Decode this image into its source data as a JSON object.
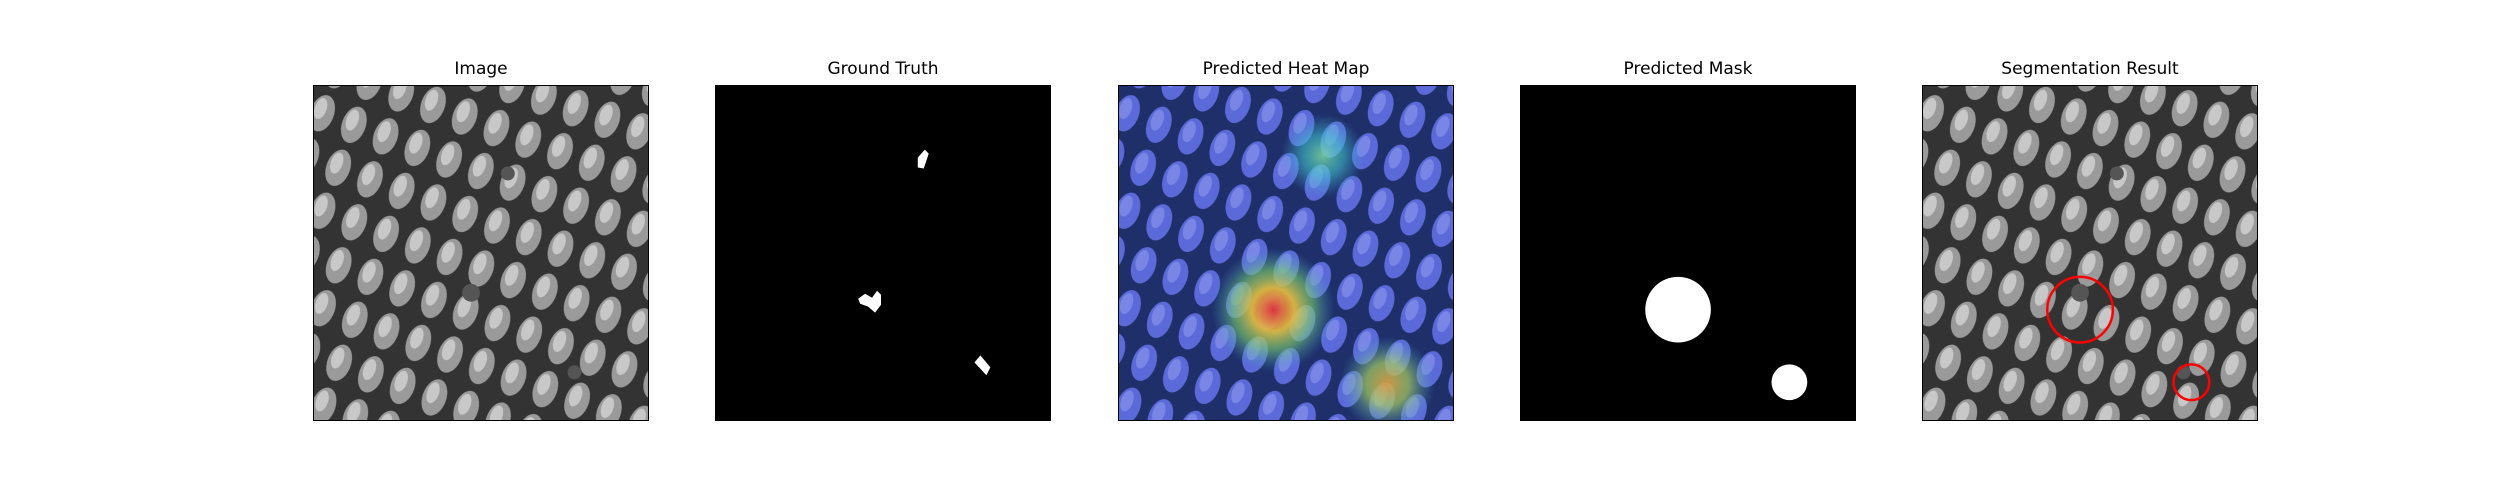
{
  "figure": {
    "panels": [
      {
        "title": "Image",
        "kind": "image"
      },
      {
        "title": "Ground Truth",
        "kind": "ground-truth"
      },
      {
        "title": "Predicted Heat Map",
        "kind": "heatmap"
      },
      {
        "title": "Predicted Mask",
        "kind": "mask"
      },
      {
        "title": "Segmentation Result",
        "kind": "overlay"
      }
    ]
  },
  "colors": {
    "background": "#ffffff",
    "mask": "#ffffff",
    "mask_bg": "#000000",
    "overlay_circle": "#ff0000"
  }
}
